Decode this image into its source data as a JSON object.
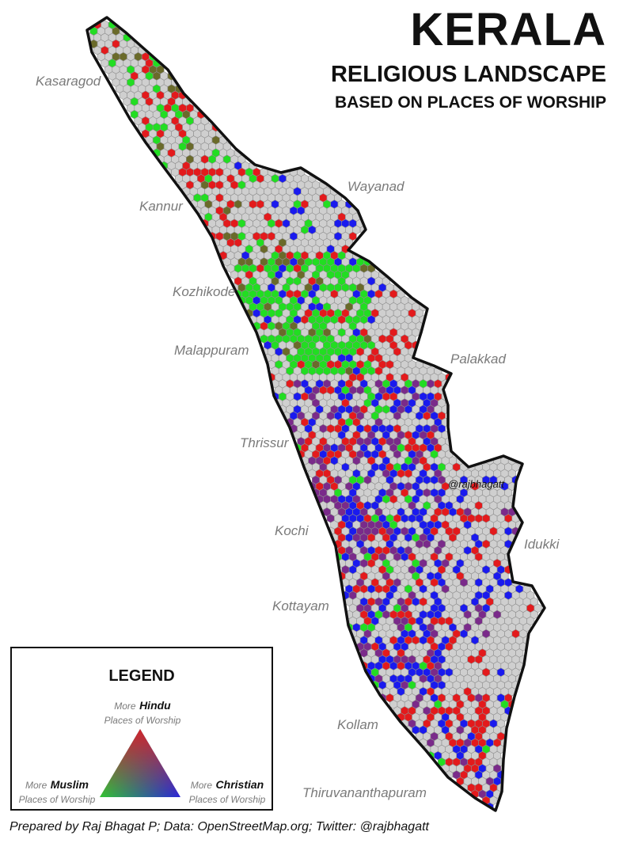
{
  "title": {
    "main": "KERALA",
    "subtitle": "RELIGIOUS LANDSCAPE",
    "subtitle2": "BASED ON PLACES OF WORSHIP"
  },
  "districts": [
    {
      "name": "Kasaragod"
    },
    {
      "name": "Kannur"
    },
    {
      "name": "Wayanad"
    },
    {
      "name": "Kozhikode"
    },
    {
      "name": "Malappuram"
    },
    {
      "name": "Palakkad"
    },
    {
      "name": "Thrissur"
    },
    {
      "name": "Kochi"
    },
    {
      "name": "Idukki"
    },
    {
      "name": "Kottayam"
    },
    {
      "name": "Kollam"
    },
    {
      "name": "Thiruvananthapuram"
    }
  ],
  "watermark": "@rajbhagatt",
  "legend": {
    "title": "LEGEND",
    "hindu": {
      "more": "More",
      "religion": "Hindu",
      "sub": "Places of Worship",
      "color": "#e31a1c"
    },
    "muslim": {
      "more": "More",
      "religion": "Muslim",
      "sub": "Places of Worship",
      "color": "#22dd22"
    },
    "christian": {
      "more": "More",
      "religion": "Christian",
      "sub": "Places of Worship",
      "color": "#1a1aee"
    }
  },
  "colors": {
    "hindu": "#e31a1c",
    "muslim": "#22dd22",
    "christian": "#1a1aee",
    "mixed": "#7a2a8a",
    "empty": "#cfcfcf",
    "border": "#111111"
  },
  "credit": "Prepared by Raj Bhagat P; Data: OpenStreetMap.org; Twitter: @rajbhagatt"
}
